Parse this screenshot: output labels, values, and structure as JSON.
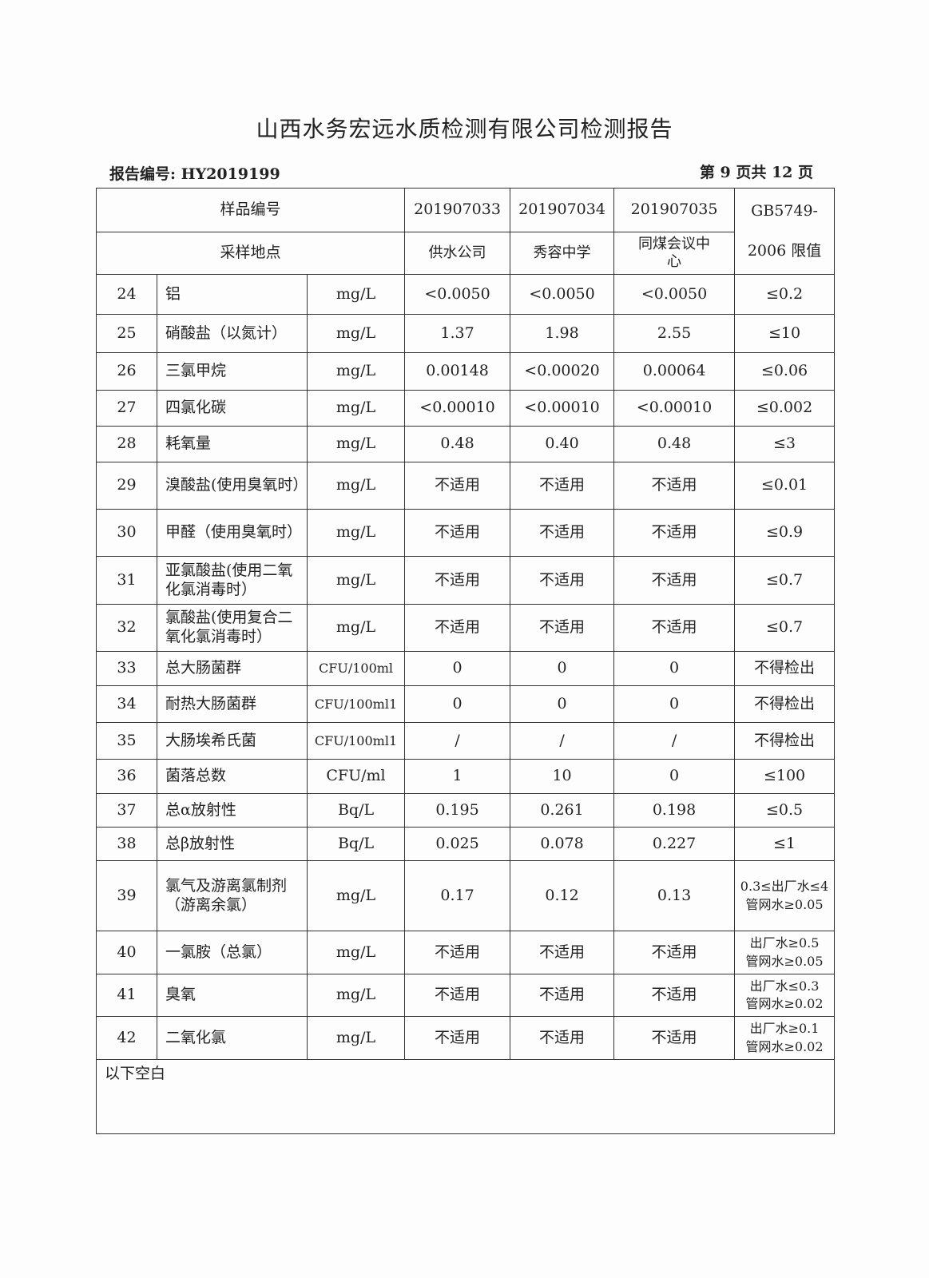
{
  "title": "山西水务宏远水质检测有限公司检测报告",
  "report_number": "报告编号: HY2019199",
  "page_info": "第 9 页共 12 页",
  "header": {
    "sample_label": "样品编号",
    "site_label": "采样地点",
    "samples": [
      "201907033",
      "201907034",
      "201907035"
    ],
    "sites": [
      "供水公司",
      "秀容中学",
      "同煤会议中心"
    ],
    "standard_line1": "GB5749-",
    "standard_line2": "2006 限值"
  },
  "rows": [
    {
      "no": "24",
      "name": "铝",
      "unit": "mg/L",
      "v": [
        "<0.0050",
        "<0.0050",
        "<0.0050"
      ],
      "limit": "≤0.2"
    },
    {
      "no": "25",
      "name": "硝酸盐（以氮计）",
      "unit": "mg/L",
      "v": [
        "1.37",
        "1.98",
        "2.55"
      ],
      "limit": "≤10"
    },
    {
      "no": "26",
      "name": "三氯甲烷",
      "unit": "mg/L",
      "v": [
        "0.00148",
        "<0.00020",
        "0.00064"
      ],
      "limit": "≤0.06"
    },
    {
      "no": "27",
      "name": "四氯化碳",
      "unit": "mg/L",
      "v": [
        "<0.00010",
        "<0.00010",
        "<0.00010"
      ],
      "limit": "≤0.002"
    },
    {
      "no": "28",
      "name": "耗氧量",
      "unit": "mg/L",
      "v": [
        "0.48",
        "0.40",
        "0.48"
      ],
      "limit": "≤3"
    },
    {
      "no": "29",
      "name": "溴酸盐(使用臭氧时）",
      "unit": "mg/L",
      "v": [
        "不适用",
        "不适用",
        "不适用"
      ],
      "limit": "≤0.01"
    },
    {
      "no": "30",
      "name": "甲醛（使用臭氧时）",
      "unit": "mg/L",
      "v": [
        "不适用",
        "不适用",
        "不适用"
      ],
      "limit": "≤0.9"
    },
    {
      "no": "31",
      "name": "亚氯酸盐(使用二氧化氯消毒时）",
      "unit": "mg/L",
      "v": [
        "不适用",
        "不适用",
        "不适用"
      ],
      "limit": "≤0.7"
    },
    {
      "no": "32",
      "name": "氯酸盐(使用复合二氧化氯消毒时）",
      "unit": "mg/L",
      "v": [
        "不适用",
        "不适用",
        "不适用"
      ],
      "limit": "≤0.7"
    },
    {
      "no": "33",
      "name": "总大肠菌群",
      "unit": "CFU/100ml",
      "v": [
        "0",
        "0",
        "0"
      ],
      "limit": "不得检出"
    },
    {
      "no": "34",
      "name": "耐热大肠菌群",
      "unit": "CFU/100ml1",
      "v": [
        "0",
        "0",
        "0"
      ],
      "limit": "不得检出"
    },
    {
      "no": "35",
      "name": "大肠埃希氏菌",
      "unit": "CFU/100ml1",
      "v": [
        "/",
        "/",
        "/"
      ],
      "limit": "不得检出"
    },
    {
      "no": "36",
      "name": "菌落总数",
      "unit": "CFU/ml",
      "v": [
        "1",
        "10",
        "0"
      ],
      "limit": "≤100"
    },
    {
      "no": "37",
      "name": "总α放射性",
      "unit": "Bq/L",
      "v": [
        "0.195",
        "0.261",
        "0.198"
      ],
      "limit": "≤0.5"
    },
    {
      "no": "38",
      "name": "总β放射性",
      "unit": "Bq/L",
      "v": [
        "0.025",
        "0.078",
        "0.227"
      ],
      "limit": "≤1"
    },
    {
      "no": "39",
      "name": "氯气及游离氯制剂（游离余氯）",
      "unit": "mg/L",
      "v": [
        "0.17",
        "0.12",
        "0.13"
      ],
      "limit": "0.3≤出厂水≤4 管网水≥0.05"
    },
    {
      "no": "40",
      "name": "一氯胺（总氯）",
      "unit": "mg/L",
      "v": [
        "不适用",
        "不适用",
        "不适用"
      ],
      "limit": "出厂水≥0.5 管网水≥0.05"
    },
    {
      "no": "41",
      "name": "臭氧",
      "unit": "mg/L",
      "v": [
        "不适用",
        "不适用",
        "不适用"
      ],
      "limit": "出厂水≤0.3 管网水≥0.02"
    },
    {
      "no": "42",
      "name": "二氧化氯",
      "unit": "mg/L",
      "v": [
        "不适用",
        "不适用",
        "不适用"
      ],
      "limit": "出厂水≥0.1 管网水≥0.02"
    }
  ],
  "footer_note": "以下空白"
}
